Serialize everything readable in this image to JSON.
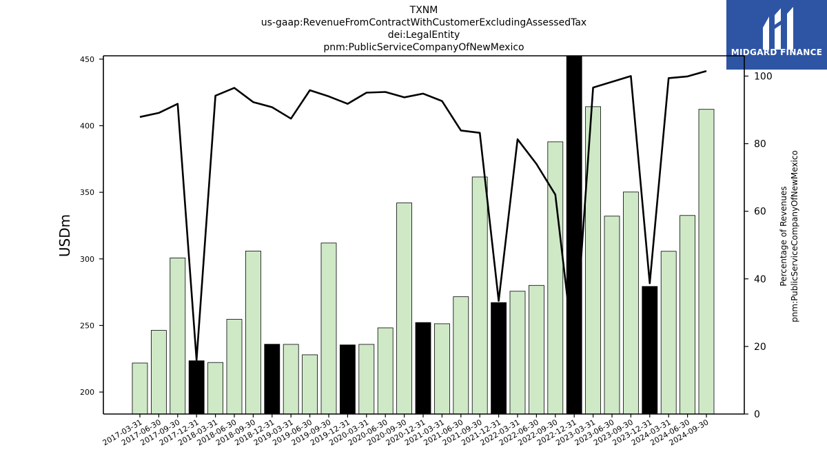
{
  "title": {
    "line1": "TXNM",
    "line2": "us-gaap:RevenueFromContractWithCustomerExcludingAssessedTax",
    "line3": "dei:LegalEntity",
    "line4": "pnm:PublicServiceCompanyOfNewMexico"
  },
  "logo": {
    "text": "MIDGARD FINANCE",
    "background": "#2e55a4"
  },
  "chart_data": {
    "type": "bar",
    "categories": [
      "2017-03-31",
      "2017-06-30",
      "2017-09-30",
      "2017-12-31",
      "2018-03-31",
      "2018-06-30",
      "2018-09-30",
      "2018-12-31",
      "2019-03-31",
      "2019-06-30",
      "2019-09-30",
      "2019-12-31",
      "2020-03-31",
      "2020-06-30",
      "2020-09-30",
      "2020-12-31",
      "2021-03-31",
      "2021-06-30",
      "2021-09-30",
      "2021-12-31",
      "2022-03-31",
      "2022-06-30",
      "2022-09-30",
      "2022-12-31",
      "2023-03-31",
      "2023-06-30",
      "2023-09-30",
      "2023-12-31",
      "2024-03-31",
      "2024-06-30",
      "2024-09-30"
    ],
    "values": [
      221.8,
      246.3,
      300.7,
      223.5,
      222.2,
      254.6,
      305.9,
      235.9,
      235.8,
      228.0,
      311.9,
      235.4,
      235.8,
      248.2,
      342.0,
      252.2,
      251.3,
      271.6,
      361.5,
      267.2,
      275.7,
      280.1,
      387.9,
      453.0,
      414.3,
      332.1,
      350.2,
      279.3,
      305.7,
      332.6,
      412.3
    ],
    "bar_types": [
      "q",
      "q",
      "q",
      "y",
      "q",
      "q",
      "q",
      "y",
      "q",
      "q",
      "q",
      "y",
      "q",
      "q",
      "q",
      "y",
      "q",
      "q",
      "q",
      "y",
      "q",
      "q",
      "q",
      "y",
      "q",
      "q",
      "q",
      "y",
      "q",
      "q",
      "q"
    ],
    "percentage_series": [
      87.9,
      89.1,
      91.8,
      16.0,
      94.2,
      96.5,
      92.3,
      90.8,
      87.4,
      95.8,
      94.0,
      91.8,
      95.1,
      95.3,
      93.7,
      94.8,
      92.6,
      83.9,
      83.2,
      33.5,
      81.3,
      74.0,
      64.9,
      17.0,
      96.6,
      98.3,
      100.0,
      38.7,
      99.4,
      99.9,
      101.5
    ],
    "ylabel": "USDm",
    "y2label_line1": "Percentage of Revenues",
    "y2label_line2": "pnm:PublicServiceCompanyOfNewMexico",
    "ylim": [
      183.5,
      452.5
    ],
    "y2lim": [
      0,
      106
    ],
    "yticks": [
      200,
      250,
      300,
      350,
      400,
      450
    ],
    "y2ticks": [
      0,
      20,
      40,
      60,
      80,
      100
    ],
    "grid": false,
    "colors": {
      "quarter_bar": "#cfe9c7",
      "annual_bar": "#000000",
      "line": "#000000"
    }
  }
}
